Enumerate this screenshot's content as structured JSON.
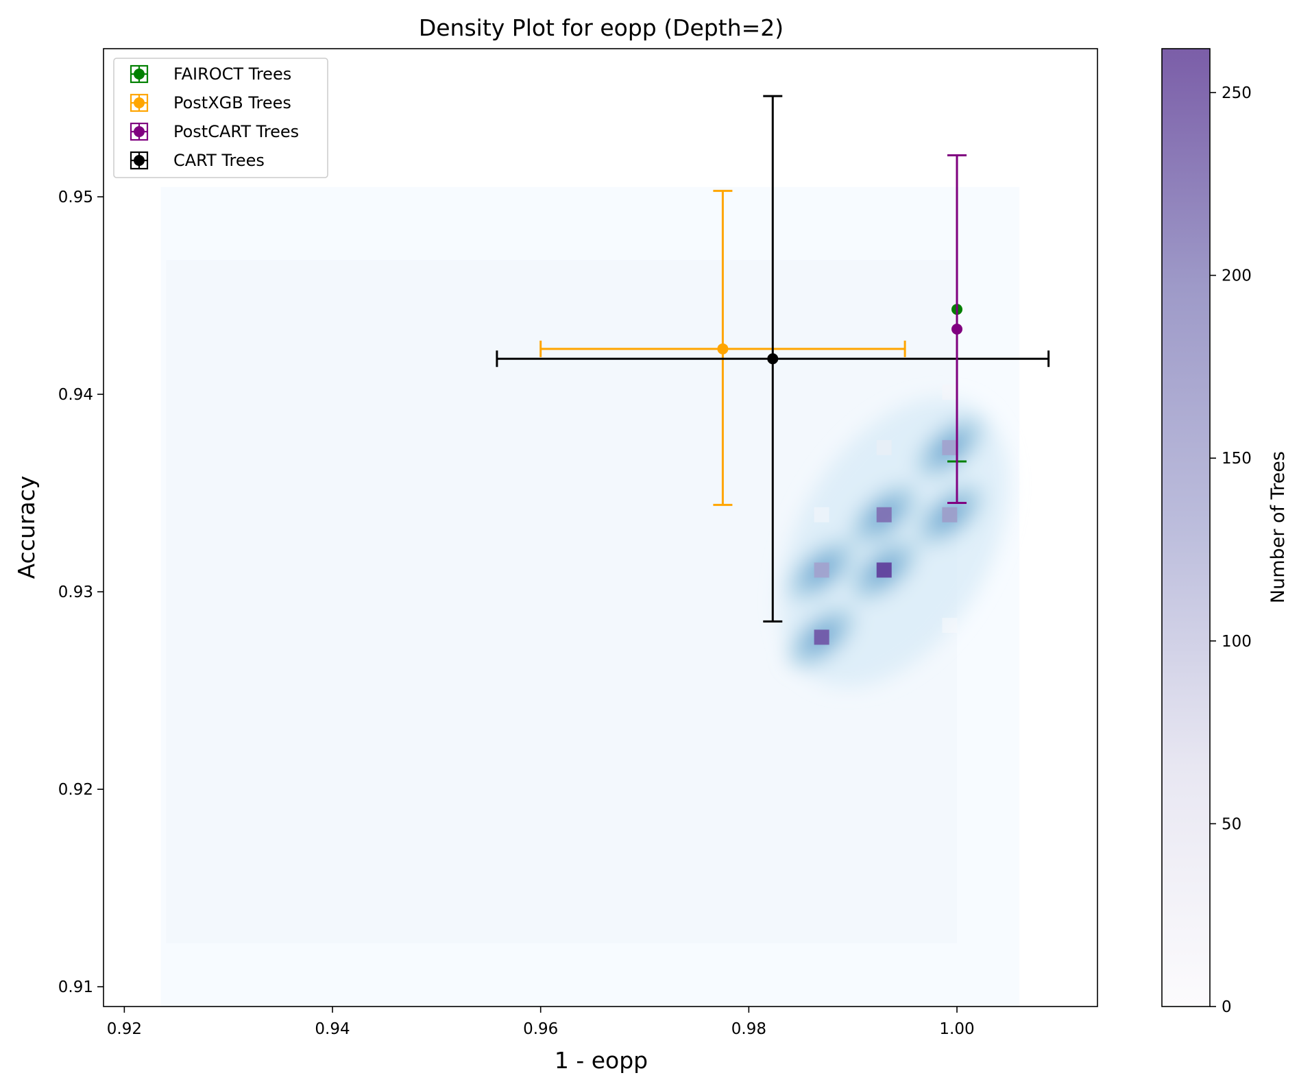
{
  "chart_data": {
    "type": "scatter",
    "title": "Density Plot for eopp (Depth=2)",
    "xlabel": "1 - eopp",
    "ylabel": "Accuracy",
    "xlim": [
      0.918,
      1.0135
    ],
    "ylim": [
      0.909,
      0.9575
    ],
    "xticks": [
      0.92,
      0.94,
      0.96,
      0.98,
      1.0
    ],
    "xtick_labels": [
      "0.92",
      "0.94",
      "0.96",
      "0.98",
      "1.00"
    ],
    "yticks": [
      0.91,
      0.92,
      0.93,
      0.94,
      0.95
    ],
    "ytick_labels": [
      "0.91",
      "0.92",
      "0.93",
      "0.94",
      "0.95"
    ],
    "grid": false,
    "legend_position": "top-left",
    "colorbar": {
      "label": "Number of Trees",
      "range": [
        0,
        262
      ],
      "ticks": [
        0,
        50,
        100,
        150,
        200,
        250
      ],
      "tick_labels": [
        "0",
        "50",
        "100",
        "150",
        "200",
        "250"
      ],
      "colormap": "Purples"
    },
    "series": [
      {
        "name": "FAIROCT Trees",
        "color": "#008000",
        "x": 1.0,
        "y": 0.9443,
        "x_err": 0.0,
        "y_err": [
          0.0077,
          0.0078
        ]
      },
      {
        "name": "PostXGB Trees",
        "color": "#FFA500",
        "x": 0.9775,
        "y": 0.9423,
        "x_err": [
          0.0175,
          0.0175
        ],
        "y_err": [
          0.0079,
          0.008
        ]
      },
      {
        "name": "PostCART Trees",
        "color": "#800080",
        "x": 1.0,
        "y": 0.9433,
        "x_err": 0.0,
        "y_err": [
          0.0088,
          0.0088
        ]
      },
      {
        "name": "CART Trees",
        "color": "#000000",
        "x": 0.9823,
        "y": 0.9418,
        "x_err": [
          0.0265,
          0.0265
        ],
        "y_err": [
          0.0133,
          0.0133
        ]
      }
    ],
    "density_bins": [
      {
        "x": 0.987,
        "y": 0.9277,
        "count": 240
      },
      {
        "x": 0.987,
        "y": 0.9311,
        "count": 185
      },
      {
        "x": 0.993,
        "y": 0.9311,
        "count": 255
      },
      {
        "x": 0.993,
        "y": 0.9339,
        "count": 225
      },
      {
        "x": 0.9993,
        "y": 0.9339,
        "count": 195
      },
      {
        "x": 0.9993,
        "y": 0.9373,
        "count": 185
      },
      {
        "x": 0.993,
        "y": 0.9373,
        "count": 40
      },
      {
        "x": 0.9993,
        "y": 0.9401,
        "count": 15
      },
      {
        "x": 0.987,
        "y": 0.9339,
        "count": 12
      },
      {
        "x": 0.9993,
        "y": 0.9283,
        "count": 8
      }
    ]
  }
}
